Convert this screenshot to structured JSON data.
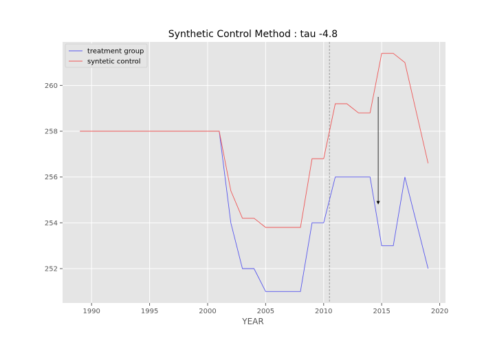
{
  "chart_data": {
    "type": "line",
    "title": "Synthetic Control Method : tau -4.8",
    "xlabel": "YEAR",
    "ylabel": "",
    "xlim": [
      1987.5,
      2020.5
    ],
    "ylim": [
      250.5,
      261.9
    ],
    "xticks": [
      1990,
      1995,
      2000,
      2005,
      2010,
      2015,
      2020
    ],
    "yticks": [
      252,
      254,
      256,
      258,
      260
    ],
    "grid": true,
    "legend_position": "top-left",
    "background": "#e5e5e5",
    "series": [
      {
        "name": "treatment group",
        "color": "#5555ee",
        "x": [
          1989,
          1990,
          1991,
          1992,
          1993,
          1994,
          1995,
          1996,
          1997,
          1998,
          1999,
          2000,
          2001,
          2002,
          2003,
          2004,
          2005,
          2006,
          2007,
          2008,
          2009,
          2010,
          2011,
          2012,
          2013,
          2014,
          2015,
          2016,
          2017,
          2018,
          2019
        ],
        "y": [
          258,
          258,
          258,
          258,
          258,
          258,
          258,
          258,
          258,
          258,
          258,
          258,
          258,
          254,
          252,
          252,
          251,
          251,
          251,
          251,
          254,
          254,
          256,
          256,
          256,
          256,
          253,
          253,
          256,
          254,
          252
        ]
      },
      {
        "name": "syntetic control",
        "color": "#ee5555",
        "x": [
          1989,
          1990,
          1991,
          1992,
          1993,
          1994,
          1995,
          1996,
          1997,
          1998,
          1999,
          2000,
          2001,
          2002,
          2003,
          2004,
          2005,
          2006,
          2007,
          2008,
          2009,
          2010,
          2011,
          2012,
          2013,
          2014,
          2015,
          2016,
          2017,
          2018,
          2019
        ],
        "y": [
          258,
          258,
          258,
          258,
          258,
          258,
          258,
          258,
          258,
          258,
          258,
          258,
          258,
          255.4,
          254.2,
          254.2,
          253.8,
          253.8,
          253.8,
          253.8,
          256.8,
          256.8,
          259.2,
          259.2,
          258.8,
          258.8,
          261.4,
          261.4,
          261,
          258.8,
          256.6
        ]
      }
    ],
    "annotations": [
      {
        "type": "vline",
        "x": 2010.5,
        "style": "dashed",
        "color": "#999999"
      },
      {
        "type": "arrow",
        "x": 2014.7,
        "y_from": 259.5,
        "y_to": 254.8,
        "color": "#000000"
      }
    ]
  }
}
